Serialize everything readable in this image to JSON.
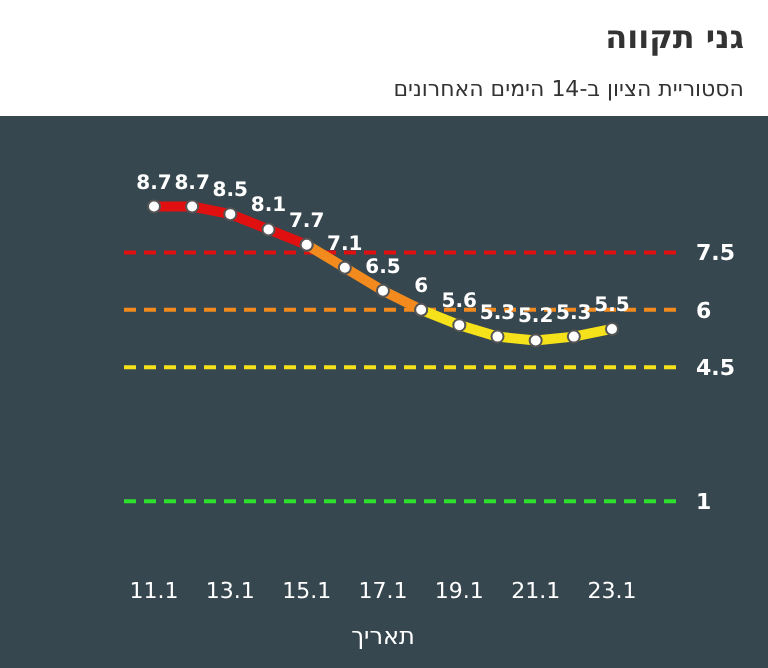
{
  "chart_data": {
    "type": "line",
    "title": "גני תקווה",
    "subtitle": "הסטוריית הציון ב-14 הימים האחרונים",
    "xlabel": "תאריך",
    "categories": [
      "11.1",
      null,
      "13.1",
      null,
      "15.1",
      null,
      "17.1",
      null,
      "19.1",
      null,
      "21.1",
      null,
      "23.1"
    ],
    "series": [
      {
        "color": "#e01010",
        "values": [
          8.7,
          8.7,
          8.5,
          8.1,
          7.7,
          null,
          null,
          null,
          null,
          null,
          null,
          null,
          null
        ],
        "value_labels": [
          "8.7",
          "8.7",
          "8.5",
          "8.1",
          "7.7",
          null,
          null,
          null,
          null,
          null,
          null,
          null,
          null
        ]
      },
      {
        "color": "#f28a1e",
        "values": [
          null,
          null,
          null,
          null,
          7.7,
          7.1,
          6.5,
          6,
          null,
          null,
          null,
          null,
          null
        ],
        "value_labels": [
          null,
          null,
          null,
          null,
          null,
          "7.1",
          "6.5",
          "6",
          null,
          null,
          null,
          null,
          null
        ]
      },
      {
        "color": "#f5e21a",
        "values": [
          null,
          null,
          null,
          null,
          null,
          null,
          null,
          6,
          5.6,
          5.3,
          5.2,
          5.3,
          5.5
        ],
        "value_labels": [
          null,
          null,
          null,
          null,
          null,
          null,
          null,
          null,
          "5.6",
          "5.3",
          "5.2",
          "5.3",
          "5.5"
        ]
      }
    ],
    "ref_lines": [
      {
        "axis": "y",
        "value": 7.5,
        "label": "7.5",
        "color": "#e01010",
        "line_style": "dashed"
      },
      {
        "axis": "y",
        "value": 6,
        "label": "6",
        "color": "#f28a1e",
        "line_style": "dashed"
      },
      {
        "axis": "y",
        "value": 4.5,
        "label": "4.5",
        "color": "#f5e21a",
        "line_style": "dashed"
      },
      {
        "axis": "y",
        "value": 1,
        "label": "1",
        "color": "#2ee02e",
        "line_style": "dashed"
      }
    ],
    "tick_labels": "x",
    "marker": "circle"
  }
}
